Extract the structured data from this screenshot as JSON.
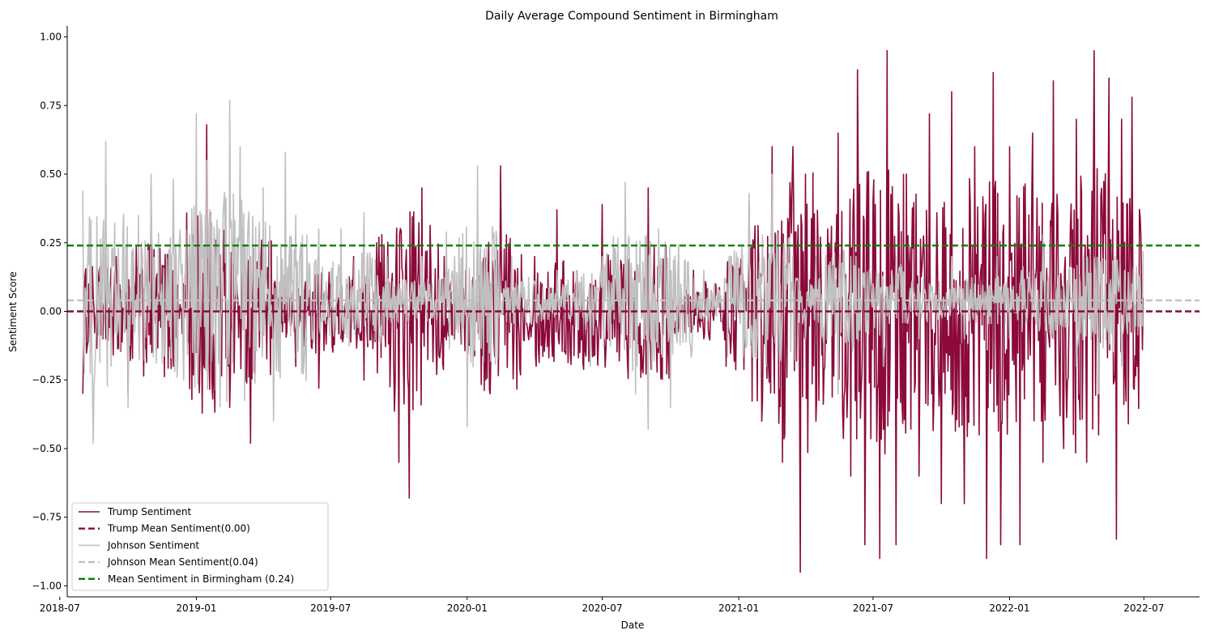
{
  "chart_data": {
    "type": "line",
    "title": "Daily Average Compound Sentiment in Birmingham",
    "xlabel": "Date",
    "ylabel": "Sentiment Score",
    "x_range": [
      "2018-07-11",
      "2022-09-14"
    ],
    "ylim": [
      -1.04,
      1.04
    ],
    "x_start": "2018-08-01",
    "x_end": "2022-06-30",
    "x_ticks": [
      "2018-07",
      "2019-01",
      "2019-07",
      "2020-01",
      "2020-07",
      "2021-01",
      "2021-07",
      "2022-01",
      "2022-07"
    ],
    "y_ticks": [
      "1.00",
      "0.75",
      "0.50",
      "0.25",
      "0.00",
      "−0.25",
      "−0.50",
      "−0.75",
      "−1.00"
    ],
    "grid": false,
    "legend_position": "lower-left",
    "series": [
      {
        "name": "Trump Sentiment",
        "kind": "line",
        "color": "#8b0a3a",
        "mean": 0.0,
        "points": [
          [
            "2018-08-01",
            -0.3
          ],
          [
            "2018-08-15",
            0.05
          ],
          [
            "2018-09-01",
            -0.1
          ],
          [
            "2018-09-15",
            0.2
          ],
          [
            "2018-10-01",
            -0.3
          ],
          [
            "2018-10-15",
            0.1
          ],
          [
            "2018-11-01",
            0.45
          ],
          [
            "2018-11-15",
            0.0
          ],
          [
            "2018-12-01",
            -0.2
          ],
          [
            "2018-12-15",
            0.1
          ],
          [
            "2019-01-01",
            -0.15
          ],
          [
            "2019-01-15",
            0.68
          ],
          [
            "2019-02-01",
            0.05
          ],
          [
            "2019-02-15",
            -0.35
          ],
          [
            "2019-03-01",
            0.0
          ],
          [
            "2019-03-15",
            -0.48
          ],
          [
            "2019-04-01",
            0.2
          ],
          [
            "2019-04-15",
            -0.1
          ],
          [
            "2019-05-01",
            0.1
          ],
          [
            "2019-05-15",
            -0.2
          ],
          [
            "2019-06-01",
            0.05
          ],
          [
            "2019-06-15",
            -0.28
          ],
          [
            "2019-07-01",
            0.1
          ],
          [
            "2019-07-15",
            -0.1
          ],
          [
            "2019-08-01",
            0.2
          ],
          [
            "2019-08-15",
            -0.25
          ],
          [
            "2019-09-01",
            0.25
          ],
          [
            "2019-09-15",
            0.0
          ],
          [
            "2019-10-01",
            -0.55
          ],
          [
            "2019-10-15",
            -0.68
          ],
          [
            "2019-11-01",
            0.45
          ],
          [
            "2019-11-15",
            0.0
          ],
          [
            "2019-12-01",
            0.2
          ],
          [
            "2019-12-15",
            -0.1
          ],
          [
            "2020-01-01",
            0.0
          ],
          [
            "2020-01-15",
            0.3
          ],
          [
            "2020-02-01",
            -0.3
          ],
          [
            "2020-02-15",
            0.53
          ],
          [
            "2020-03-01",
            0.1
          ],
          [
            "2020-03-15",
            0.0
          ],
          [
            "2020-04-01",
            0.2
          ],
          [
            "2020-04-15",
            -0.1
          ],
          [
            "2020-05-01",
            0.37
          ],
          [
            "2020-05-15",
            0.0
          ],
          [
            "2020-06-01",
            -0.15
          ],
          [
            "2020-06-15",
            0.1
          ],
          [
            "2020-07-01",
            0.39
          ],
          [
            "2020-07-15",
            -0.1
          ],
          [
            "2020-08-01",
            0.2
          ],
          [
            "2020-08-15",
            0.0
          ],
          [
            "2020-09-01",
            0.45
          ],
          [
            "2020-09-15",
            -0.15
          ],
          [
            "2020-10-01",
            0.1
          ],
          [
            "2020-10-15",
            0.0
          ],
          [
            "2020-11-01",
            0.15
          ],
          [
            "2020-11-15",
            -0.1
          ],
          [
            "2020-12-01",
            0.1
          ],
          [
            "2020-12-15",
            -0.2
          ],
          [
            "2021-01-01",
            0.0
          ],
          [
            "2021-01-15",
            0.4
          ],
          [
            "2021-02-01",
            -0.4
          ],
          [
            "2021-02-15",
            0.6
          ],
          [
            "2021-03-01",
            -0.55
          ],
          [
            "2021-03-15",
            0.6
          ],
          [
            "2021-03-25",
            -0.95
          ],
          [
            "2021-04-01",
            0.5
          ],
          [
            "2021-04-15",
            -0.4
          ],
          [
            "2021-05-01",
            0.3
          ],
          [
            "2021-05-15",
            0.65
          ],
          [
            "2021-06-01",
            -0.6
          ],
          [
            "2021-06-10",
            0.88
          ],
          [
            "2021-06-20",
            -0.85
          ],
          [
            "2021-07-01",
            0.4
          ],
          [
            "2021-07-10",
            -0.9
          ],
          [
            "2021-07-20",
            0.95
          ],
          [
            "2021-08-01",
            -0.85
          ],
          [
            "2021-08-15",
            0.5
          ],
          [
            "2021-09-01",
            -0.6
          ],
          [
            "2021-09-15",
            0.72
          ],
          [
            "2021-10-01",
            -0.7
          ],
          [
            "2021-10-15",
            0.8
          ],
          [
            "2021-11-01",
            -0.7
          ],
          [
            "2021-11-15",
            0.6
          ],
          [
            "2021-12-01",
            -0.9
          ],
          [
            "2021-12-10",
            0.87
          ],
          [
            "2021-12-20",
            -0.85
          ],
          [
            "2022-01-01",
            0.6
          ],
          [
            "2022-01-15",
            -0.85
          ],
          [
            "2022-02-01",
            0.65
          ],
          [
            "2022-02-15",
            -0.55
          ],
          [
            "2022-03-01",
            0.84
          ],
          [
            "2022-03-15",
            -0.5
          ],
          [
            "2022-04-01",
            0.7
          ],
          [
            "2022-04-15",
            -0.55
          ],
          [
            "2022-04-25",
            0.95
          ],
          [
            "2022-05-01",
            -0.45
          ],
          [
            "2022-05-15",
            0.85
          ],
          [
            "2022-05-25",
            -0.83
          ],
          [
            "2022-06-01",
            0.7
          ],
          [
            "2022-06-15",
            0.78
          ],
          [
            "2022-06-22",
            -0.2
          ],
          [
            "2022-06-30",
            0.05
          ]
        ]
      },
      {
        "name": "Trump Mean Sentiment(0.00)",
        "kind": "hline",
        "color": "#8b0a3a",
        "dash": true,
        "y": 0.0
      },
      {
        "name": "Johnson Sentiment",
        "kind": "line",
        "color": "#c0c0c0",
        "mean": 0.04,
        "points": [
          [
            "2018-08-01",
            0.44
          ],
          [
            "2018-08-15",
            -0.48
          ],
          [
            "2018-09-01",
            0.62
          ],
          [
            "2018-09-15",
            0.1
          ],
          [
            "2018-10-01",
            -0.35
          ],
          [
            "2018-10-15",
            0.35
          ],
          [
            "2018-11-01",
            0.5
          ],
          [
            "2018-11-15",
            0.1
          ],
          [
            "2018-12-01",
            0.48
          ],
          [
            "2018-12-15",
            -0.25
          ],
          [
            "2019-01-01",
            0.72
          ],
          [
            "2019-01-15",
            0.55
          ],
          [
            "2019-02-01",
            0.3
          ],
          [
            "2019-02-15",
            0.77
          ],
          [
            "2019-03-01",
            0.6
          ],
          [
            "2019-03-15",
            0.2
          ],
          [
            "2019-04-01",
            0.45
          ],
          [
            "2019-04-15",
            -0.4
          ],
          [
            "2019-05-01",
            0.58
          ],
          [
            "2019-05-15",
            0.35
          ],
          [
            "2019-06-01",
            0.1
          ],
          [
            "2019-06-15",
            0.3
          ],
          [
            "2019-07-01",
            0.0
          ],
          [
            "2019-07-15",
            0.3
          ],
          [
            "2019-08-01",
            0.05
          ],
          [
            "2019-08-15",
            0.36
          ],
          [
            "2019-09-01",
            0.0
          ],
          [
            "2019-09-15",
            0.2
          ],
          [
            "2019-10-01",
            0.1
          ],
          [
            "2019-10-15",
            0.0
          ],
          [
            "2019-11-01",
            0.2
          ],
          [
            "2019-11-15",
            0.1
          ],
          [
            "2019-12-01",
            -0.05
          ],
          [
            "2019-12-15",
            0.2
          ],
          [
            "2020-01-01",
            -0.42
          ],
          [
            "2020-01-15",
            0.53
          ],
          [
            "2020-02-01",
            0.1
          ],
          [
            "2020-02-15",
            0.0
          ],
          [
            "2020-03-01",
            0.2
          ],
          [
            "2020-03-15",
            0.05
          ],
          [
            "2020-04-01",
            0.1
          ],
          [
            "2020-04-15",
            0.0
          ],
          [
            "2020-05-01",
            0.15
          ],
          [
            "2020-05-15",
            0.05
          ],
          [
            "2020-06-01",
            0.1
          ],
          [
            "2020-06-15",
            -0.2
          ],
          [
            "2020-07-01",
            0.2
          ],
          [
            "2020-07-15",
            0.0
          ],
          [
            "2020-08-01",
            0.47
          ],
          [
            "2020-08-15",
            -0.3
          ],
          [
            "2020-09-01",
            -0.43
          ],
          [
            "2020-09-15",
            0.3
          ],
          [
            "2020-10-01",
            -0.35
          ],
          [
            "2020-10-15",
            0.1
          ],
          [
            "2020-11-01",
            0.0
          ],
          [
            "2020-11-15",
            0.15
          ],
          [
            "2020-12-01",
            0.0
          ],
          [
            "2020-12-15",
            0.1
          ],
          [
            "2021-01-01",
            0.0
          ],
          [
            "2021-01-15",
            0.43
          ],
          [
            "2021-02-01",
            0.1
          ],
          [
            "2021-02-15",
            0.5
          ],
          [
            "2021-03-01",
            0.0
          ],
          [
            "2021-03-15",
            0.2
          ],
          [
            "2021-04-01",
            -0.1
          ],
          [
            "2021-04-15",
            0.2
          ],
          [
            "2021-05-01",
            0.0
          ],
          [
            "2021-05-15",
            -0.3
          ],
          [
            "2021-06-01",
            0.2
          ],
          [
            "2021-06-15",
            0.0
          ],
          [
            "2021-07-01",
            0.1
          ],
          [
            "2021-07-15",
            -0.2
          ],
          [
            "2021-08-01",
            0.2
          ],
          [
            "2021-08-15",
            0.0
          ],
          [
            "2021-09-01",
            -0.1
          ],
          [
            "2021-09-15",
            0.1
          ],
          [
            "2021-10-01",
            0.0
          ],
          [
            "2021-10-15",
            0.2
          ],
          [
            "2021-11-01",
            -0.1
          ],
          [
            "2021-11-15",
            0.1
          ],
          [
            "2021-12-01",
            0.0
          ],
          [
            "2021-12-15",
            0.2
          ],
          [
            "2022-01-01",
            -0.1
          ],
          [
            "2022-01-15",
            0.1
          ],
          [
            "2022-02-01",
            0.0
          ],
          [
            "2022-02-15",
            0.28
          ],
          [
            "2022-03-01",
            -0.1
          ],
          [
            "2022-03-15",
            0.1
          ],
          [
            "2022-04-01",
            -0.2
          ],
          [
            "2022-04-15",
            0.2
          ],
          [
            "2022-05-01",
            -0.3
          ],
          [
            "2022-05-15",
            0.1
          ],
          [
            "2022-06-01",
            -0.2
          ],
          [
            "2022-06-15",
            0.1
          ],
          [
            "2022-06-30",
            0.22
          ]
        ]
      },
      {
        "name": "Johnson Mean Sentiment(0.04)",
        "kind": "hline",
        "color": "#c0c0c0",
        "dash": true,
        "y": 0.04
      },
      {
        "name": "Mean Sentiment in Birmingham (0.24)",
        "kind": "hline",
        "color": "#008000",
        "dash": true,
        "y": 0.24
      }
    ]
  }
}
